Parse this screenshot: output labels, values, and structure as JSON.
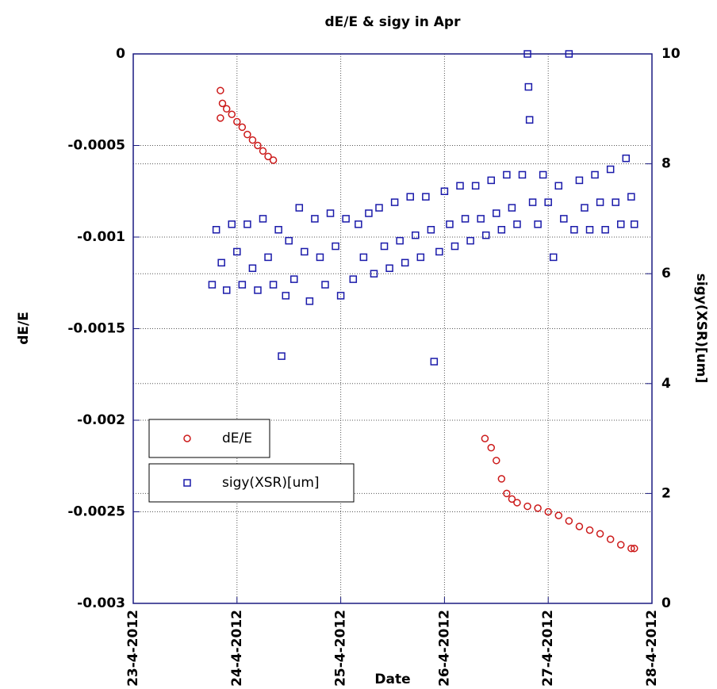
{
  "chart_data": {
    "type": "scatter",
    "title": "dE/E & sigy in Apr",
    "xlabel": "Date",
    "ylabel": "dE/E",
    "y2label": "sigy(XSR)[um]",
    "xlim": [
      23,
      28
    ],
    "xticks": [
      {
        "value": 23,
        "label": "23-4-2012"
      },
      {
        "value": 24,
        "label": "24-4-2012"
      },
      {
        "value": 25,
        "label": "25-4-2012"
      },
      {
        "value": 26,
        "label": "26-4-2012"
      },
      {
        "value": 27,
        "label": "27-4-2012"
      },
      {
        "value": 28,
        "label": "28-4-2012"
      }
    ],
    "ylim": [
      -0.003,
      0
    ],
    "yticks": [
      0,
      -0.0005,
      -0.001,
      -0.0015,
      -0.002,
      -0.0025,
      -0.003
    ],
    "y2lim": [
      0,
      10
    ],
    "y2ticks": [
      0,
      2,
      4,
      6,
      8,
      10
    ],
    "grid": true,
    "legend": "lower left",
    "series": [
      {
        "name": "dE/E",
        "color": "#cc1a1a",
        "marker": "circle",
        "x": [
          23.84,
          23.84,
          23.86,
          23.9,
          23.95,
          24.0,
          24.05,
          24.1,
          24.15,
          24.2,
          24.25,
          24.3,
          24.35,
          26.39,
          26.45,
          26.5,
          26.55,
          26.6,
          26.65,
          26.7,
          26.8,
          26.9,
          27.0,
          27.1,
          27.2,
          27.3,
          27.4,
          27.5,
          27.6,
          27.7,
          27.8,
          27.83
        ],
        "values": [
          -0.0002,
          -0.00035,
          -0.00027,
          -0.0003,
          -0.00033,
          -0.00037,
          -0.0004,
          -0.00044,
          -0.00047,
          -0.0005,
          -0.00053,
          -0.00056,
          -0.00058,
          -0.0021,
          -0.00215,
          -0.00222,
          -0.00232,
          -0.0024,
          -0.00243,
          -0.00245,
          -0.00247,
          -0.00248,
          -0.0025,
          -0.00252,
          -0.00255,
          -0.00258,
          -0.0026,
          -0.00262,
          -0.00265,
          -0.00268,
          -0.0027,
          -0.0027
        ]
      },
      {
        "name": "sigy(XSR)[um]",
        "color": "#1a1aaa",
        "marker": "square",
        "axis": "y2",
        "x": [
          23.76,
          23.8,
          23.85,
          23.9,
          23.95,
          24.0,
          24.05,
          24.1,
          24.15,
          24.2,
          24.25,
          24.3,
          24.35,
          24.4,
          24.43,
          24.47,
          24.5,
          24.55,
          24.6,
          24.65,
          24.7,
          24.75,
          24.8,
          24.85,
          24.9,
          24.95,
          25.0,
          25.05,
          25.12,
          25.17,
          25.22,
          25.27,
          25.32,
          25.37,
          25.42,
          25.47,
          25.52,
          25.57,
          25.62,
          25.67,
          25.72,
          25.77,
          25.82,
          25.87,
          25.9,
          25.95,
          26.0,
          26.05,
          26.1,
          26.15,
          26.2,
          26.25,
          26.3,
          26.35,
          26.4,
          26.45,
          26.5,
          26.55,
          26.6,
          26.65,
          26.7,
          26.75,
          26.8,
          26.81,
          26.82,
          26.85,
          26.9,
          26.95,
          27.0,
          27.05,
          27.1,
          27.15,
          27.2,
          27.25,
          27.3,
          27.35,
          27.4,
          27.45,
          27.5,
          27.55,
          27.6,
          27.65,
          27.7,
          27.75,
          27.8,
          27.83
        ],
        "values": [
          5.8,
          6.8,
          6.2,
          5.7,
          6.9,
          6.4,
          5.8,
          6.9,
          6.1,
          5.7,
          7.0,
          6.3,
          5.8,
          6.8,
          4.5,
          5.6,
          6.6,
          5.9,
          7.2,
          6.4,
          5.5,
          7.0,
          6.3,
          5.8,
          7.1,
          6.5,
          5.6,
          7.0,
          5.9,
          6.9,
          6.3,
          7.1,
          6.0,
          7.2,
          6.5,
          6.1,
          7.3,
          6.6,
          6.2,
          7.4,
          6.7,
          6.3,
          7.4,
          6.8,
          4.4,
          6.4,
          7.5,
          6.9,
          6.5,
          7.6,
          7.0,
          6.6,
          7.6,
          7.0,
          6.7,
          7.7,
          7.1,
          6.8,
          7.8,
          7.2,
          6.9,
          7.8,
          10,
          9.4,
          8.8,
          7.3,
          6.9,
          7.8,
          7.3,
          6.3,
          7.6,
          7.0,
          10,
          6.8,
          7.7,
          7.2,
          6.8,
          7.8,
          7.3,
          6.8,
          7.9,
          7.3,
          6.9,
          8.1,
          7.4,
          6.9
        ]
      }
    ]
  }
}
